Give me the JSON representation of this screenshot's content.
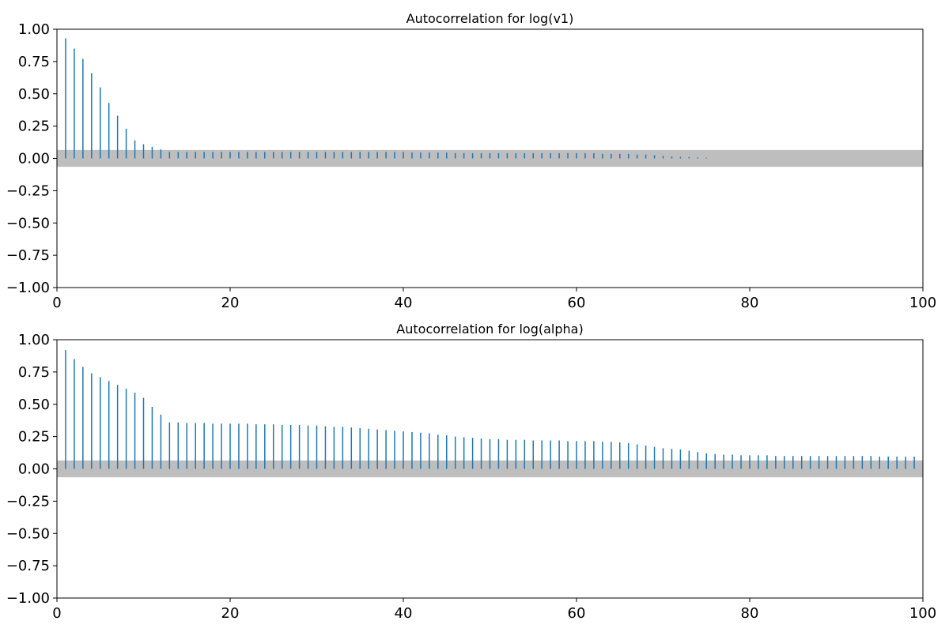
{
  "chart_data": [
    {
      "type": "bar",
      "title": "Autocorrelation for log(v1)",
      "xlabel": "",
      "ylabel": "",
      "xlim": [
        0,
        100
      ],
      "ylim": [
        -1.0,
        1.0
      ],
      "xticks": [
        "0",
        "20",
        "40",
        "60",
        "80",
        "100"
      ],
      "yticks": [
        "−1.00",
        "−0.75",
        "−0.50",
        "−0.25",
        "0.00",
        "0.25",
        "0.50",
        "0.75",
        "1.00"
      ],
      "grid": false,
      "confidence_band": [
        -0.065,
        0.065
      ],
      "band_color": "#bebebe",
      "bar_color": "#1f77b4",
      "x": [
        1,
        2,
        3,
        4,
        5,
        6,
        7,
        8,
        9,
        10,
        11,
        12,
        13,
        14,
        15,
        16,
        17,
        18,
        19,
        20,
        21,
        22,
        23,
        24,
        25,
        26,
        27,
        28,
        29,
        30,
        31,
        32,
        33,
        34,
        35,
        36,
        37,
        38,
        39,
        40,
        41,
        42,
        43,
        44,
        45,
        46,
        47,
        48,
        49,
        50,
        51,
        52,
        53,
        54,
        55,
        56,
        57,
        58,
        59,
        60,
        61,
        62,
        63,
        64,
        65,
        66,
        67,
        68,
        69,
        70,
        71,
        72,
        73,
        74,
        75
      ],
      "values": [
        0.93,
        0.85,
        0.77,
        0.66,
        0.55,
        0.43,
        0.33,
        0.23,
        0.14,
        0.11,
        0.09,
        0.07,
        0.05,
        0.05,
        0.05,
        0.05,
        0.05,
        0.05,
        0.05,
        0.05,
        0.05,
        0.05,
        0.05,
        0.05,
        0.05,
        0.05,
        0.05,
        0.05,
        0.05,
        0.05,
        0.05,
        0.05,
        0.05,
        0.05,
        0.05,
        0.05,
        0.05,
        0.05,
        0.05,
        0.05,
        0.045,
        0.045,
        0.045,
        0.045,
        0.045,
        0.04,
        0.04,
        0.04,
        0.04,
        0.04,
        0.04,
        0.04,
        0.04,
        0.04,
        0.04,
        0.04,
        0.04,
        0.04,
        0.04,
        0.04,
        0.04,
        0.04,
        0.035,
        0.035,
        0.035,
        0.035,
        0.03,
        0.03,
        0.025,
        0.02,
        0.015,
        0.012,
        0.01,
        0.008,
        0.005
      ]
    },
    {
      "type": "bar",
      "title": "Autocorrelation for log(alpha)",
      "xlabel": "",
      "ylabel": "",
      "xlim": [
        0,
        100
      ],
      "ylim": [
        -1.0,
        1.0
      ],
      "xticks": [
        "0",
        "20",
        "40",
        "60",
        "80",
        "100"
      ],
      "yticks": [
        "−1.00",
        "−0.75",
        "−0.50",
        "−0.25",
        "0.00",
        "0.25",
        "0.50",
        "0.75",
        "1.00"
      ],
      "grid": false,
      "confidence_band": [
        -0.065,
        0.065
      ],
      "band_color": "#bebebe",
      "bar_color": "#1f77b4",
      "x": [
        1,
        2,
        3,
        4,
        5,
        6,
        7,
        8,
        9,
        10,
        11,
        12,
        13,
        14,
        15,
        16,
        17,
        18,
        19,
        20,
        21,
        22,
        23,
        24,
        25,
        26,
        27,
        28,
        29,
        30,
        31,
        32,
        33,
        34,
        35,
        36,
        37,
        38,
        39,
        40,
        41,
        42,
        43,
        44,
        45,
        46,
        47,
        48,
        49,
        50,
        51,
        52,
        53,
        54,
        55,
        56,
        57,
        58,
        59,
        60,
        61,
        62,
        63,
        64,
        65,
        66,
        67,
        68,
        69,
        70,
        71,
        72,
        73,
        74,
        75,
        76,
        77,
        78,
        79,
        80,
        81,
        82,
        83,
        84,
        85,
        86,
        87,
        88,
        89,
        90,
        91,
        92,
        93,
        94,
        95,
        96,
        97,
        98,
        99
      ],
      "values": [
        0.92,
        0.85,
        0.79,
        0.74,
        0.71,
        0.68,
        0.65,
        0.62,
        0.59,
        0.55,
        0.48,
        0.42,
        0.36,
        0.36,
        0.355,
        0.355,
        0.355,
        0.35,
        0.35,
        0.35,
        0.35,
        0.35,
        0.345,
        0.345,
        0.345,
        0.34,
        0.34,
        0.34,
        0.335,
        0.335,
        0.33,
        0.325,
        0.325,
        0.32,
        0.315,
        0.31,
        0.305,
        0.3,
        0.295,
        0.29,
        0.285,
        0.28,
        0.275,
        0.265,
        0.26,
        0.25,
        0.245,
        0.24,
        0.235,
        0.23,
        0.23,
        0.225,
        0.225,
        0.225,
        0.22,
        0.22,
        0.22,
        0.22,
        0.215,
        0.215,
        0.215,
        0.215,
        0.21,
        0.21,
        0.205,
        0.2,
        0.19,
        0.18,
        0.17,
        0.16,
        0.155,
        0.15,
        0.14,
        0.13,
        0.12,
        0.115,
        0.11,
        0.11,
        0.105,
        0.105,
        0.105,
        0.105,
        0.1,
        0.1,
        0.1,
        0.1,
        0.1,
        0.1,
        0.1,
        0.1,
        0.1,
        0.1,
        0.1,
        0.1,
        0.095,
        0.095,
        0.095,
        0.095,
        0.095
      ]
    }
  ]
}
